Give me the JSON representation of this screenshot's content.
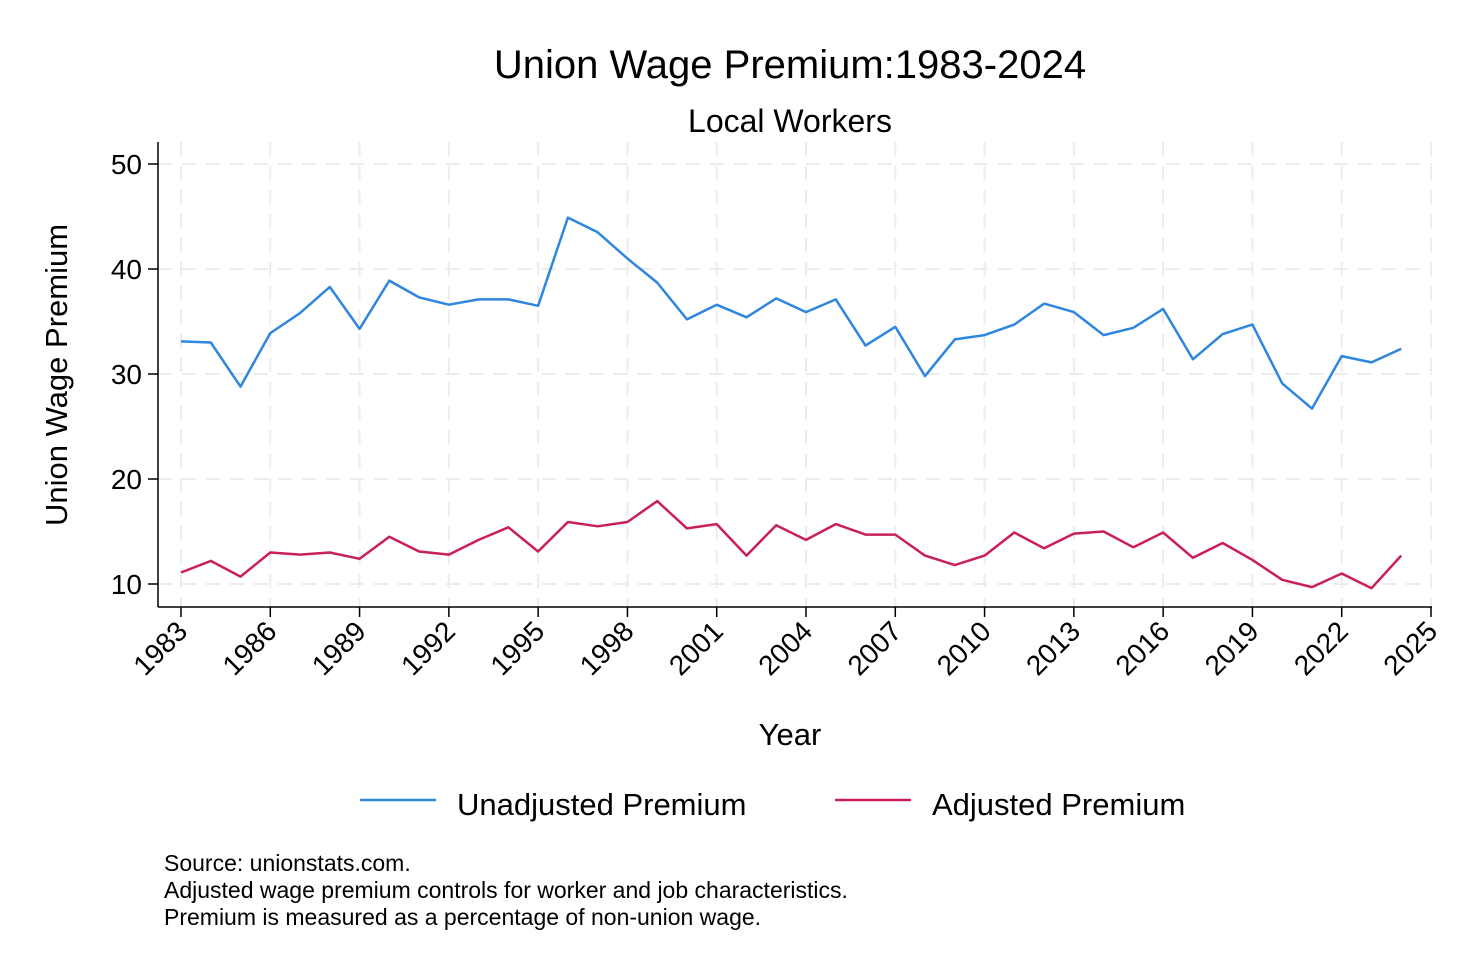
{
  "chart_data": {
    "type": "line",
    "title": "Union Wage Premium:1983-2024",
    "subtitle": "Local Workers",
    "xlabel": "Year",
    "ylabel": "Union Wage Premium",
    "xlim": [
      1983,
      2025
    ],
    "ylim": [
      8,
      52
    ],
    "x_ticks": [
      1983,
      1986,
      1989,
      1992,
      1995,
      1998,
      2001,
      2004,
      2007,
      2010,
      2013,
      2016,
      2019,
      2022,
      2025
    ],
    "y_ticks": [
      10,
      20,
      30,
      40,
      50
    ],
    "grid": true,
    "legend_position": "bottom",
    "x": [
      1983,
      1984,
      1985,
      1986,
      1987,
      1988,
      1989,
      1990,
      1991,
      1992,
      1993,
      1994,
      1995,
      1996,
      1997,
      1998,
      1999,
      2000,
      2001,
      2002,
      2003,
      2004,
      2005,
      2006,
      2007,
      2008,
      2009,
      2010,
      2011,
      2012,
      2013,
      2014,
      2015,
      2016,
      2017,
      2018,
      2019,
      2020,
      2021,
      2022,
      2023,
      2024
    ],
    "series": [
      {
        "name": "Unadjusted Premium",
        "color": "#2e86e0",
        "values": [
          33.1,
          33.0,
          28.8,
          33.9,
          35.8,
          38.3,
          34.3,
          38.9,
          37.3,
          36.6,
          37.1,
          37.1,
          36.5,
          44.9,
          43.5,
          41.0,
          38.7,
          35.2,
          36.6,
          35.4,
          37.2,
          35.9,
          37.1,
          32.7,
          34.5,
          29.8,
          33.3,
          33.7,
          34.7,
          36.7,
          35.9,
          33.7,
          34.4,
          36.2,
          31.4,
          33.8,
          34.7,
          29.1,
          26.7,
          31.7,
          31.1,
          32.4
        ]
      },
      {
        "name": "Adjusted Premium",
        "color": "#c91f5a",
        "values": [
          11.1,
          12.2,
          10.7,
          13.0,
          12.8,
          13.0,
          12.4,
          14.5,
          13.1,
          12.8,
          14.2,
          15.4,
          13.1,
          15.9,
          15.5,
          15.9,
          17.9,
          15.3,
          15.7,
          12.7,
          15.6,
          14.2,
          15.7,
          14.7,
          14.7,
          12.7,
          11.8,
          12.7,
          14.9,
          13.4,
          14.8,
          15.0,
          13.5,
          14.9,
          12.5,
          13.9,
          12.3,
          10.4,
          9.7,
          11.0,
          9.6,
          12.7
        ]
      }
    ],
    "notes": [
      "Source: unionstats.com.",
      "Adjusted wage premium controls for worker and job characteristics.",
      "Premium is measured as a percentage of non-union wage."
    ]
  }
}
